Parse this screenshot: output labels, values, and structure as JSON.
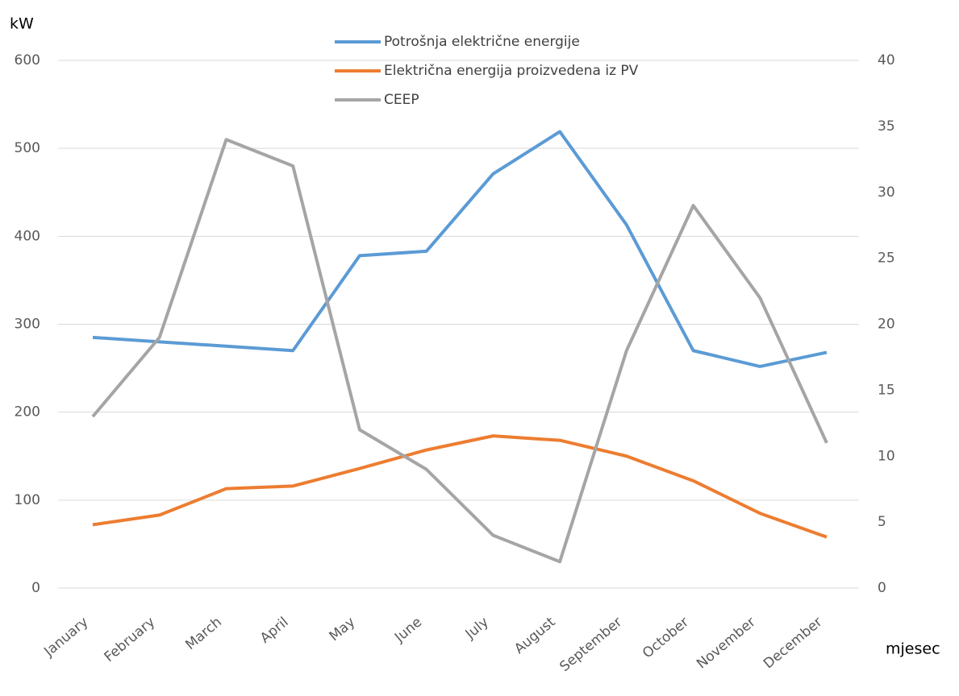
{
  "chart_data": {
    "type": "line",
    "y_label": "kW",
    "x_label": "mjesec",
    "categories": [
      "January",
      "February",
      "March",
      "April",
      "May",
      "June",
      "July",
      "August",
      "September",
      "October",
      "November",
      "December"
    ],
    "series": [
      {
        "name": "Potrošnja električne energije",
        "color": "#5b9bd5",
        "values": [
          285,
          280,
          275,
          270,
          378,
          383,
          471,
          519,
          413,
          270,
          252,
          268
        ]
      },
      {
        "name": "Električna energija proizvedena iz PV",
        "color": "#ed7d31",
        "values": [
          72,
          83,
          113,
          116,
          136,
          157,
          173,
          168,
          150,
          122,
          85,
          58
        ]
      },
      {
        "name": "CEEP",
        "color": "#a5a5a5",
        "axis": "y2",
        "values": [
          13,
          19,
          34,
          32,
          12,
          9,
          4,
          2,
          18,
          29,
          22,
          11
        ]
      }
    ],
    "ylim": [
      0,
      600
    ],
    "yticks": [
      0,
      100,
      200,
      300,
      400,
      500,
      600
    ],
    "y2lim": [
      0,
      40
    ],
    "y2ticks": [
      0,
      5,
      10,
      15,
      20,
      25,
      30,
      35,
      40
    ],
    "grid": true,
    "legend": "top"
  }
}
